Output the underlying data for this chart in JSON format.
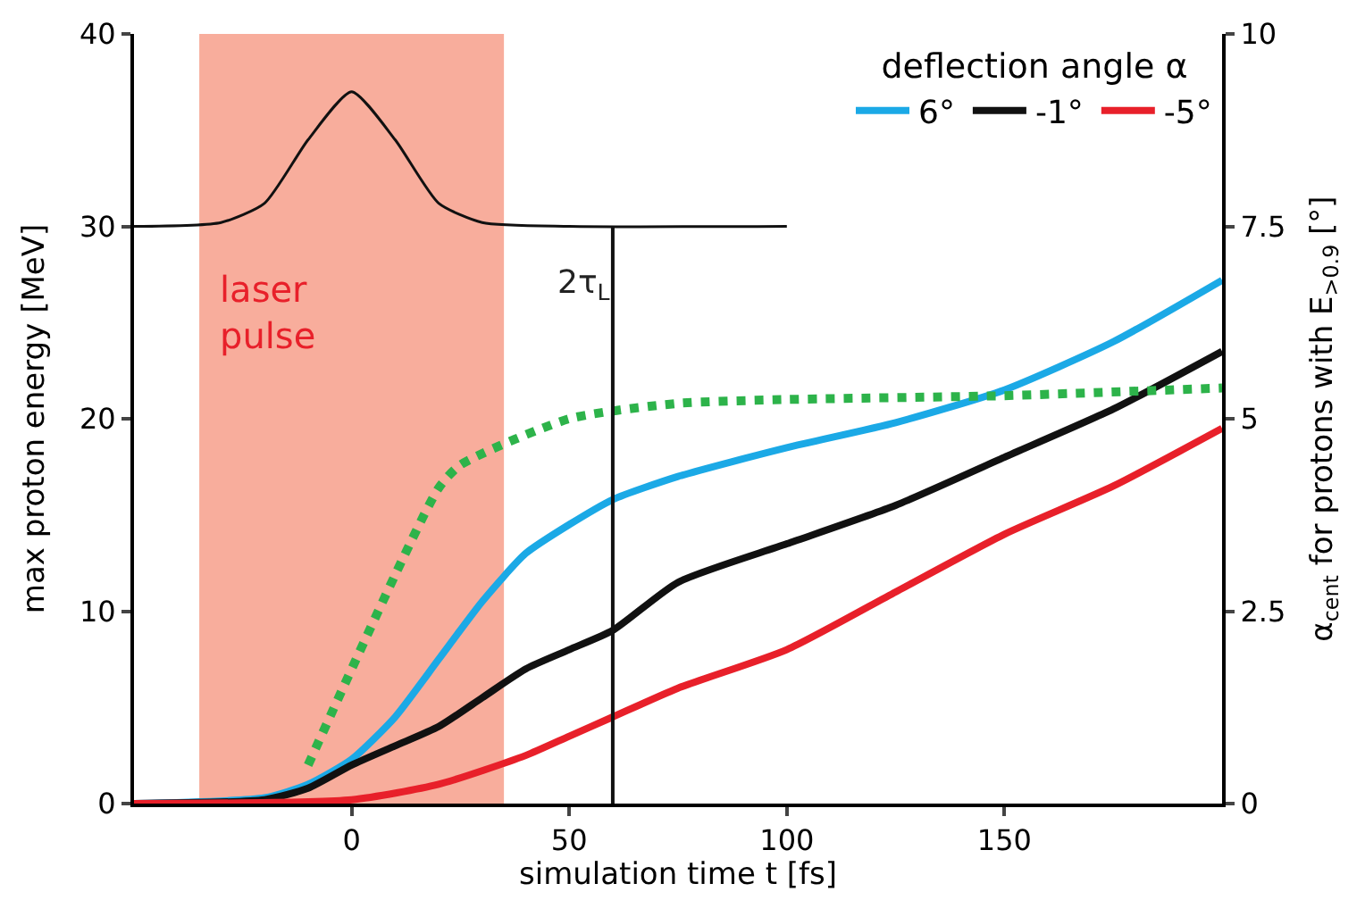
{
  "chart_data": {
    "type": "line",
    "xlabel": "simulation time t [fs]",
    "ylabel": "max proton energy [MeV]",
    "y2label": "α$_{cent}$ for protons with E$_{>0.9}$ [°]",
    "legend_title": "deflection angle α",
    "legend": "top right",
    "grid": false,
    "xlim": [
      -50,
      200
    ],
    "xticks": [
      0,
      50,
      100,
      150
    ],
    "ylim": [
      0,
      40
    ],
    "yticks": [
      0,
      10,
      20,
      30,
      40
    ],
    "y2lim": [
      0,
      10
    ],
    "y2ticks": [
      0,
      2.5,
      5,
      7.5,
      10
    ],
    "series": [
      {
        "name": "6°",
        "color": "#1ba9e6",
        "line_style": "solid",
        "x": [
          -50,
          -20,
          -10,
          0,
          10,
          20,
          30,
          40,
          50,
          60,
          75,
          100,
          125,
          150,
          175,
          200
        ],
        "values": [
          0,
          0.3,
          1,
          2.3,
          4.5,
          7.5,
          10.5,
          13,
          14.5,
          15.8,
          17,
          18.5,
          19.8,
          21.5,
          24,
          27.2
        ]
      },
      {
        "name": "-1°",
        "color": "#111111",
        "line_style": "solid",
        "x": [
          -50,
          -20,
          -10,
          0,
          10,
          20,
          30,
          40,
          50,
          60,
          75,
          100,
          125,
          150,
          175,
          200
        ],
        "values": [
          0,
          0.2,
          0.8,
          2,
          3,
          4,
          5.5,
          7,
          8,
          9,
          11.5,
          13.5,
          15.5,
          18,
          20.5,
          23.5
        ]
      },
      {
        "name": "-5°",
        "color": "#e8202a",
        "line_style": "solid",
        "x": [
          -50,
          0,
          20,
          40,
          50,
          60,
          75,
          100,
          125,
          150,
          175,
          200
        ],
        "values": [
          0,
          0.2,
          1,
          2.5,
          3.5,
          4.5,
          6,
          8,
          11,
          14,
          16.5,
          19.5
        ]
      },
      {
        "color": "#2db34a",
        "line_style": "dotted",
        "axis": "y2",
        "x": [
          -10,
          20,
          25,
          50,
          75,
          100,
          150,
          200
        ],
        "values": [
          0.5,
          4.1,
          4.4,
          5.0,
          5.2,
          5.25,
          5.3,
          5.4
        ]
      },
      {
        "color": "#111111",
        "line_style": "solid",
        "x": [
          -50,
          -30,
          -20,
          -10,
          0,
          10,
          20,
          30,
          50,
          100
        ],
        "values": [
          30,
          30.2,
          31.2,
          34.5,
          37,
          34.5,
          31.2,
          30.2,
          30,
          30
        ]
      }
    ],
    "bands": [
      {
        "axis": "x",
        "from": -35,
        "to": 35,
        "color": "#f26a4b"
      }
    ],
    "ref_lines": [
      {
        "axis": "x",
        "value": 60,
        "label": "2τ$_{L}$"
      }
    ],
    "annotations": [
      "laser pulse"
    ]
  }
}
